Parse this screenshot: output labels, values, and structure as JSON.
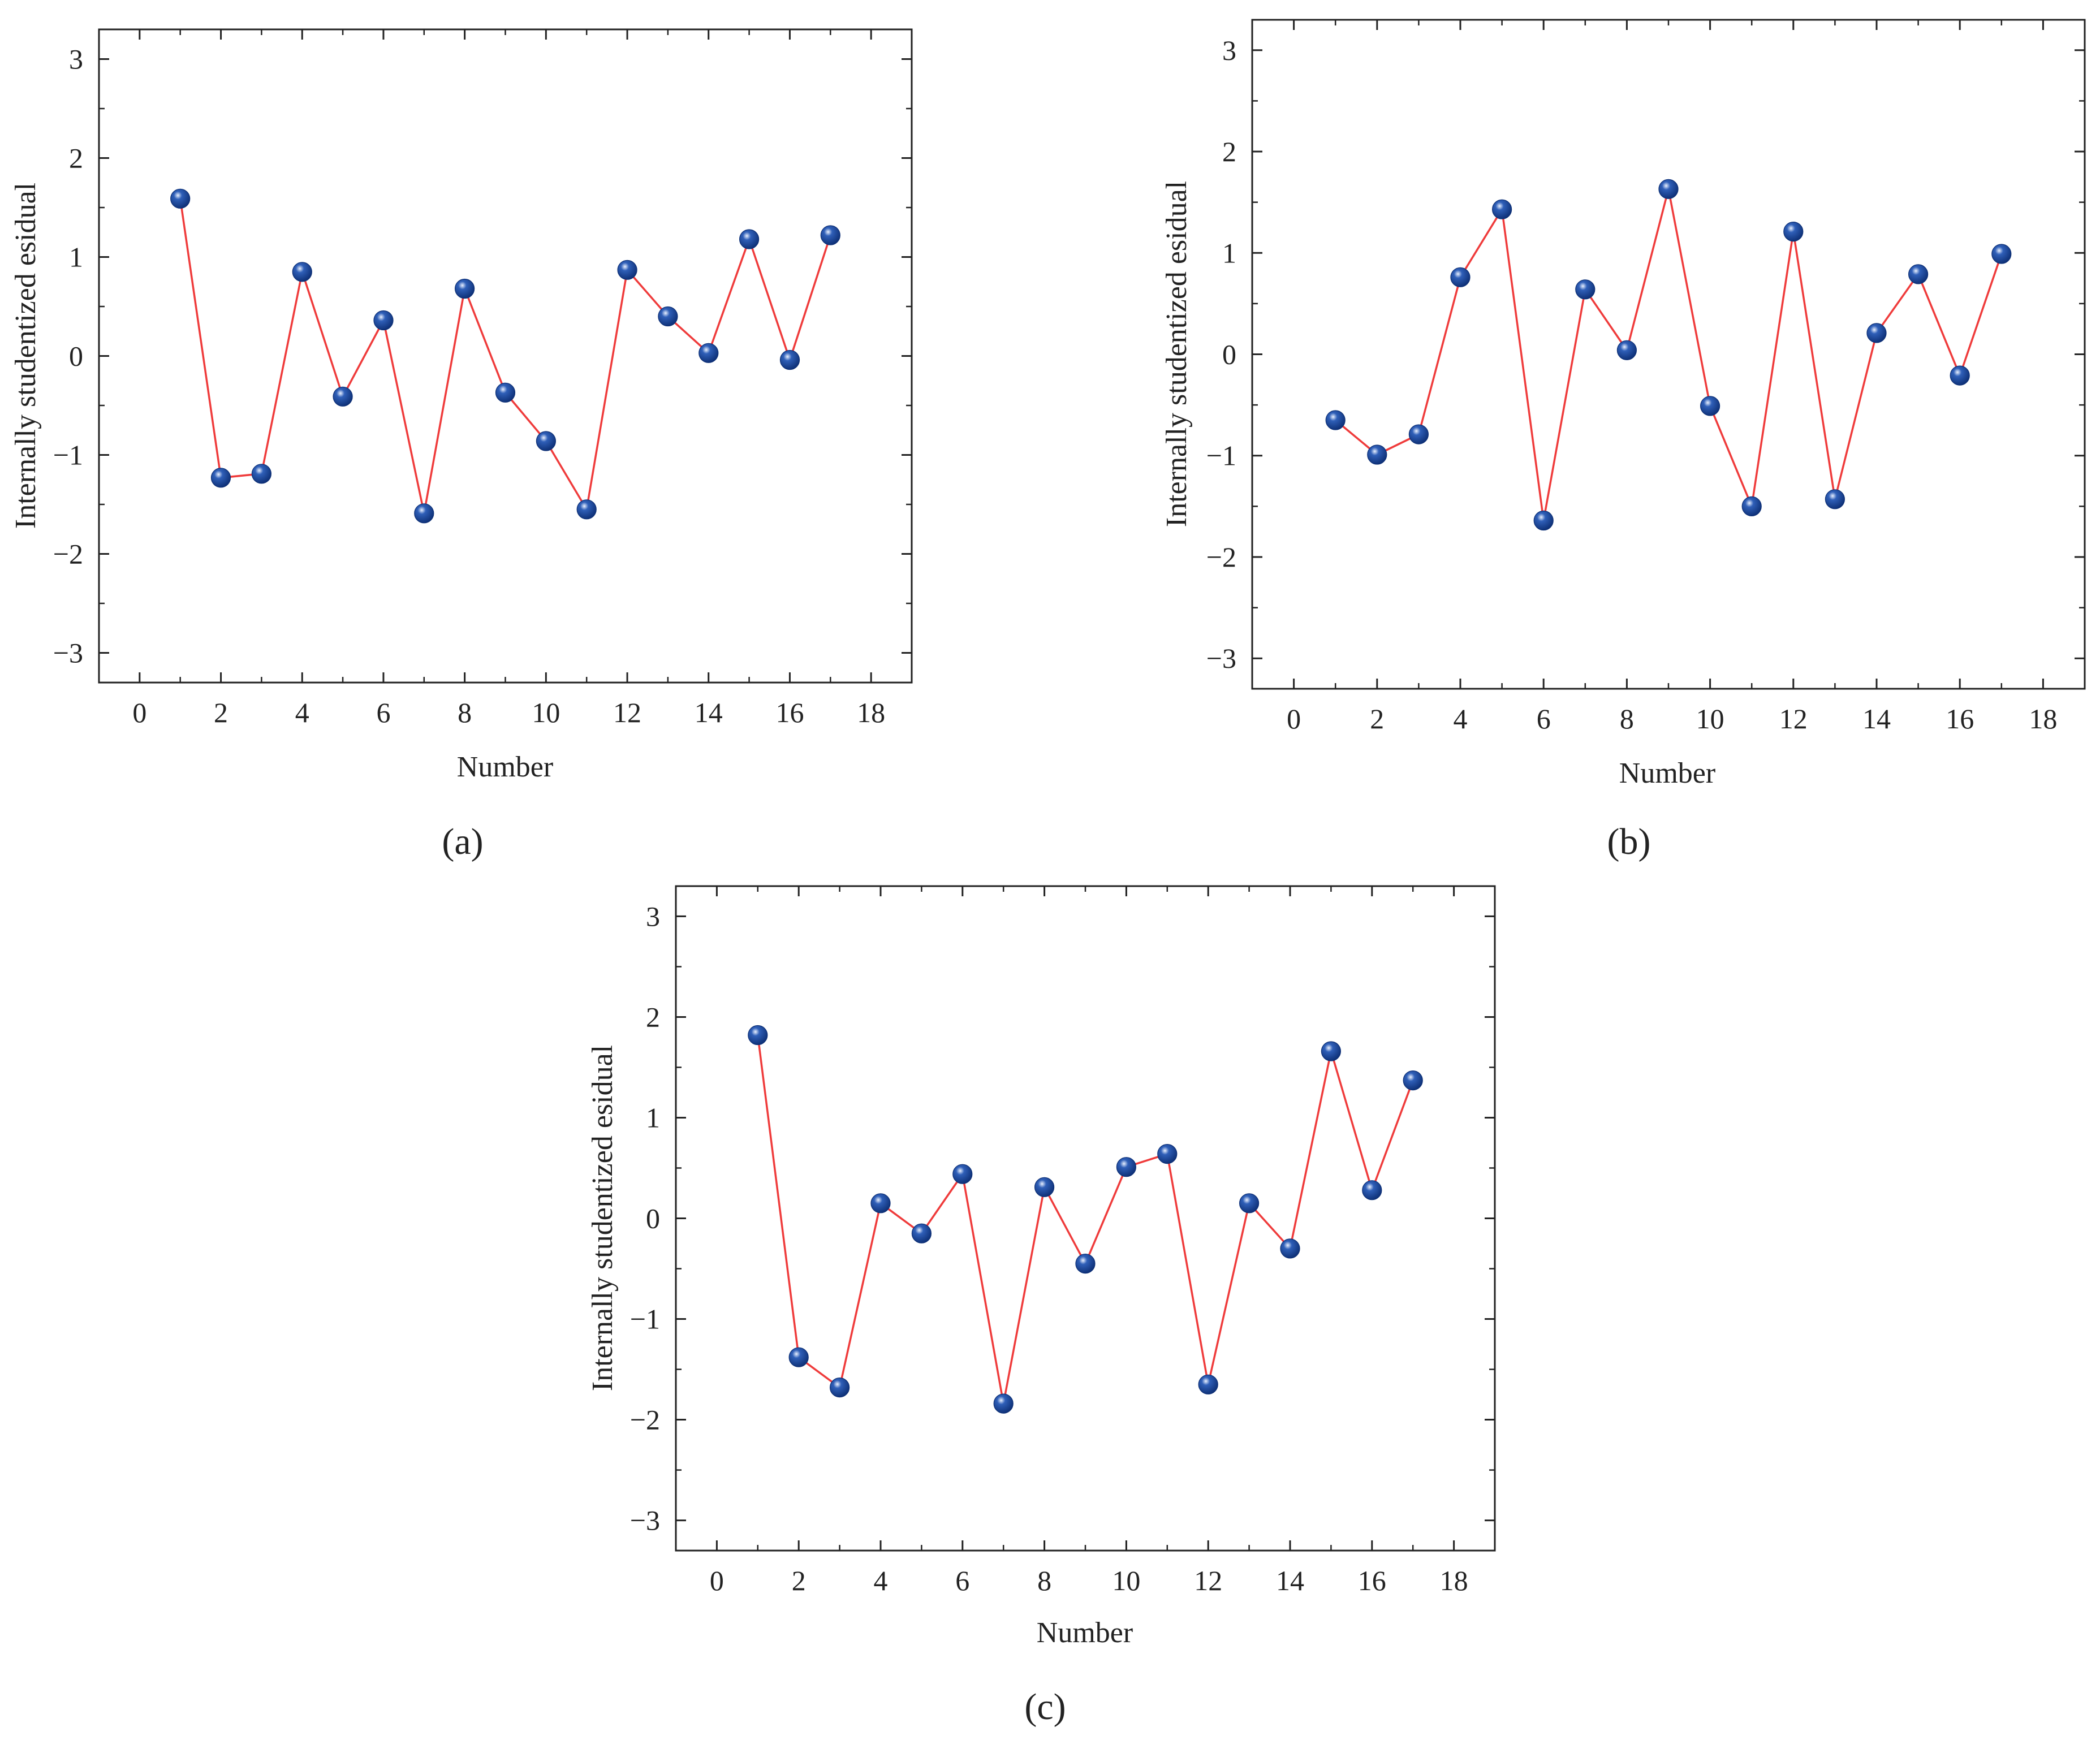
{
  "colors": {
    "line": "#ef3b3b",
    "marker": "#2f5fb8",
    "marker_highlight": "#eaf1ff",
    "marker_shade": "#0d2f75",
    "axes": "#222222"
  },
  "chart_data": [
    {
      "panel": "a",
      "panel_label": "(a)",
      "type": "line",
      "marker": "sphere",
      "title": "",
      "xlabel": "Number",
      "ylabel": "Internally studentized esidual",
      "xlim": [
        -1,
        19
      ],
      "ylim": [
        -3.3,
        3.3
      ],
      "xticks": [
        0,
        2,
        4,
        6,
        8,
        10,
        12,
        14,
        16,
        18
      ],
      "xtick_labels": [
        "0",
        "2",
        "4",
        "6",
        "8",
        "10",
        "12",
        "14",
        "16",
        "18"
      ],
      "yticks": [
        -3,
        -2,
        -1,
        0,
        1,
        2,
        3
      ],
      "ytick_labels": [
        "−3",
        "−2",
        "−1",
        "0",
        "1",
        "2",
        "3"
      ],
      "grid": false,
      "x": [
        1,
        2,
        3,
        4,
        5,
        6,
        7,
        8,
        9,
        10,
        11,
        12,
        13,
        14,
        15,
        16,
        17
      ],
      "y": [
        1.59,
        -1.23,
        -1.19,
        0.85,
        -0.41,
        0.36,
        -1.59,
        0.68,
        -0.37,
        -0.86,
        -1.55,
        0.87,
        0.4,
        0.03,
        1.18,
        -0.04,
        1.22
      ]
    },
    {
      "panel": "b",
      "panel_label": "(b)",
      "type": "line",
      "marker": "sphere",
      "title": "",
      "xlabel": "Number",
      "ylabel": "Internally studentized esidual",
      "xlim": [
        -1,
        19
      ],
      "ylim": [
        -3.3,
        3.3
      ],
      "xticks": [
        0,
        2,
        4,
        6,
        8,
        10,
        12,
        14,
        16,
        18
      ],
      "xtick_labels": [
        "0",
        "2",
        "4",
        "6",
        "8",
        "10",
        "12",
        "14",
        "16",
        "18"
      ],
      "yticks": [
        -3,
        -2,
        -1,
        0,
        1,
        2,
        3
      ],
      "ytick_labels": [
        "−3",
        "−2",
        "−1",
        "0",
        "1",
        "2",
        "3"
      ],
      "grid": false,
      "x": [
        1,
        2,
        3,
        4,
        5,
        6,
        7,
        8,
        9,
        10,
        11,
        12,
        13,
        14,
        15,
        16,
        17
      ],
      "y": [
        -0.65,
        -0.99,
        -0.79,
        0.76,
        1.43,
        -1.64,
        0.64,
        0.04,
        1.63,
        -0.51,
        -1.5,
        1.21,
        -1.43,
        0.21,
        0.79,
        -0.21,
        0.99
      ]
    },
    {
      "panel": "c",
      "panel_label": "(c)",
      "type": "line",
      "marker": "sphere",
      "title": "",
      "xlabel": "Number",
      "ylabel": "Internally studentized esidual",
      "xlim": [
        -1,
        19
      ],
      "ylim": [
        -3.3,
        3.3
      ],
      "xticks": [
        0,
        2,
        4,
        6,
        8,
        10,
        12,
        14,
        16,
        18
      ],
      "xtick_labels": [
        "0",
        "2",
        "4",
        "6",
        "8",
        "10",
        "12",
        "14",
        "16",
        "18"
      ],
      "yticks": [
        -3,
        -2,
        -1,
        0,
        1,
        2,
        3
      ],
      "ytick_labels": [
        "−3",
        "−2",
        "−1",
        "0",
        "1",
        "2",
        "3"
      ],
      "grid": false,
      "x": [
        1,
        2,
        3,
        4,
        5,
        6,
        7,
        8,
        9,
        10,
        11,
        12,
        13,
        14,
        15,
        16,
        17
      ],
      "y": [
        1.82,
        -1.38,
        -1.68,
        0.15,
        -0.15,
        0.44,
        -1.84,
        0.31,
        -0.45,
        0.51,
        0.64,
        -1.65,
        0.15,
        -0.3,
        1.66,
        0.28,
        1.37
      ]
    }
  ]
}
